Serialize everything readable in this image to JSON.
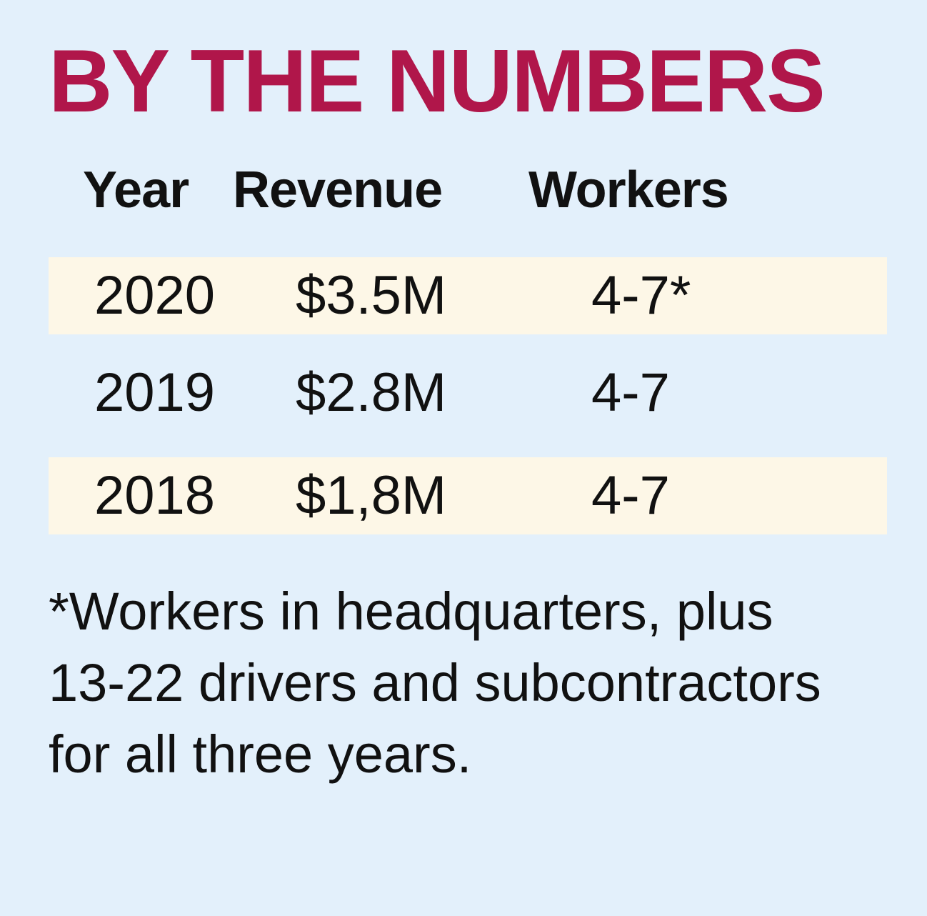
{
  "title": "BY THE NUMBERS",
  "colors": {
    "background": "#e3f0fb",
    "title": "#b0164a",
    "row_highlight": "#fdf7e7",
    "text": "#111111"
  },
  "chart_data": {
    "type": "table",
    "title": "BY THE NUMBERS",
    "columns": [
      "Year",
      "Revenue",
      "Workers"
    ],
    "rows": [
      {
        "year": "2020",
        "revenue": "$3.5M",
        "workers": "4-7*",
        "shaded": true
      },
      {
        "year": "2019",
        "revenue": "$2.8M",
        "workers": "4-7",
        "shaded": false
      },
      {
        "year": "2018",
        "revenue": "$1,8M",
        "workers": "4-7",
        "shaded": true
      }
    ],
    "footnote": "*Workers in headquarters, plus 13-22 drivers and subcontractors for all three years."
  }
}
